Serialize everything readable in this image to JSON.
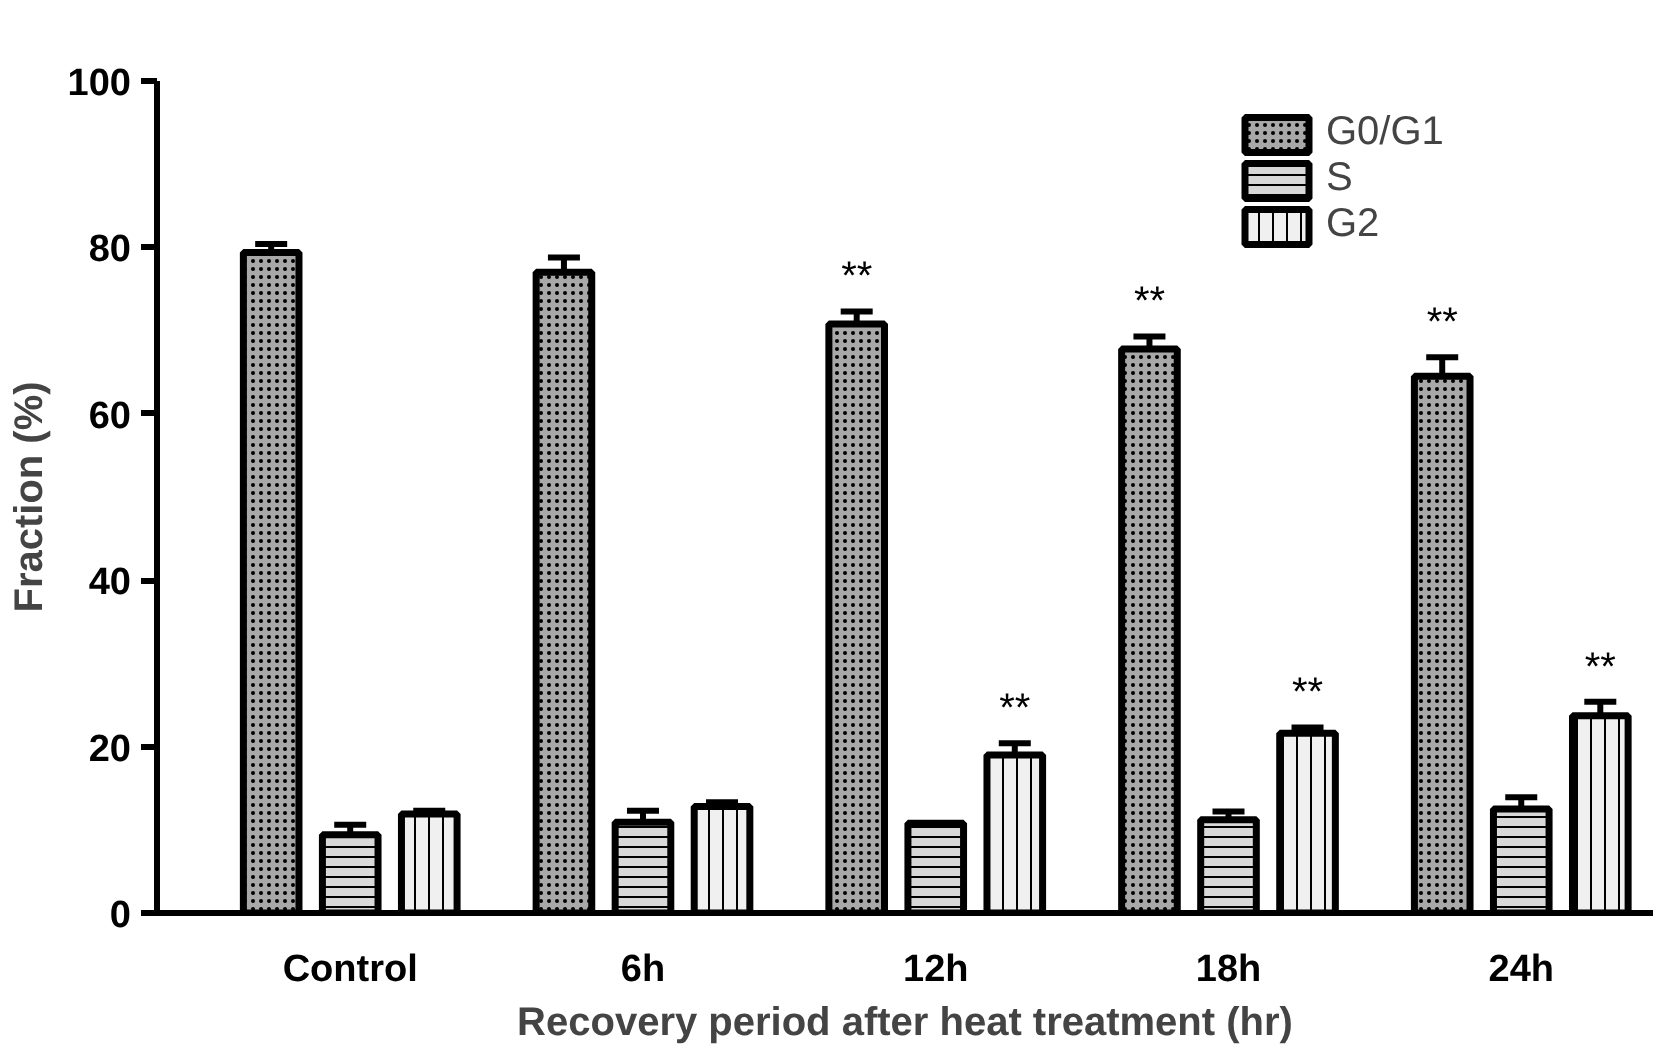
{
  "chart_data": {
    "type": "bar",
    "xlabel": "Recovery period after heat treatment (hr)",
    "ylabel": "Fraction (%)",
    "categories": [
      "Control",
      "6h",
      "12h",
      "18h",
      "24h"
    ],
    "series": [
      {
        "name": "G0/G1",
        "color": "#a8a8a8",
        "values": [
          79.4,
          77.0,
          70.8,
          67.8,
          64.5
        ],
        "errors": [
          1.0,
          1.8,
          1.5,
          1.5,
          2.3
        ],
        "value_labels": [
          null,
          null,
          "**",
          "**",
          "**"
        ]
      },
      {
        "name": "S",
        "color": "#d8d8d8",
        "values": [
          9.4,
          10.9,
          10.8,
          11.2,
          12.5
        ],
        "errors": [
          1.2,
          1.4,
          0,
          1.0,
          1.4
        ]
      },
      {
        "name": "G2",
        "color": "#f0f0f0",
        "values": [
          11.9,
          12.8,
          19.0,
          21.6,
          23.7
        ],
        "errors": [
          0.4,
          0.5,
          1.4,
          0.7,
          1.7
        ],
        "value_labels": [
          null,
          null,
          "**",
          "**",
          "**"
        ]
      }
    ],
    "ylim": [
      0,
      100
    ],
    "yticks": [
      0,
      20,
      40,
      60,
      80,
      100
    ],
    "grid": false,
    "legend": "top right"
  }
}
